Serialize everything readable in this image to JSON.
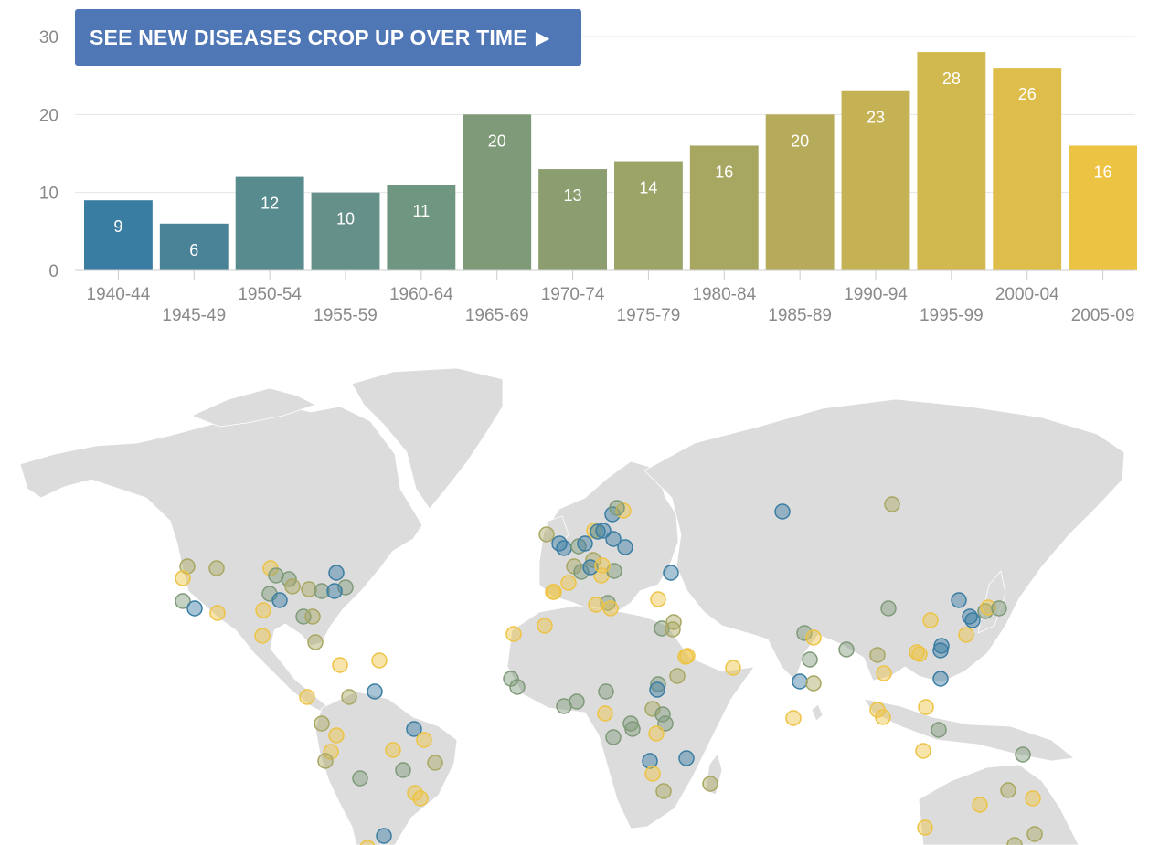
{
  "play_button": {
    "label": "SEE NEW DISEASES CROP UP OVER TIME",
    "icon": "play-icon"
  },
  "chart_data": {
    "type": "bar",
    "title": "",
    "xlabel": "",
    "ylabel": "",
    "ylim": [
      0,
      30
    ],
    "yticks": [
      0,
      10,
      20,
      30
    ],
    "grid": true,
    "categories": [
      "1940-44",
      "1945-49",
      "1950-54",
      "1955-59",
      "1960-64",
      "1965-69",
      "1970-74",
      "1975-79",
      "1980-84",
      "1985-89",
      "1990-94",
      "1995-99",
      "2000-04",
      "2005-09"
    ],
    "values": [
      9,
      6,
      12,
      10,
      11,
      20,
      13,
      14,
      16,
      20,
      23,
      28,
      26,
      16
    ],
    "colors": [
      "#3a7da2",
      "#4a8398",
      "#588b8e",
      "#649089",
      "#6f9680",
      "#7e9a78",
      "#8c9e70",
      "#9ca468",
      "#a8a761",
      "#b6ab5b",
      "#c5b255",
      "#d2b94f",
      "#dfbd4a",
      "#edc344"
    ],
    "data_labels_color": "#ffffff",
    "tick_label_color": "#8a8a8a"
  },
  "map": {
    "land_color": "#dcdcdc",
    "border_color": "#ffffff",
    "marker_palette": [
      "#3a7da2",
      "#7e9a78",
      "#a8a761",
      "#edc344"
    ]
  }
}
